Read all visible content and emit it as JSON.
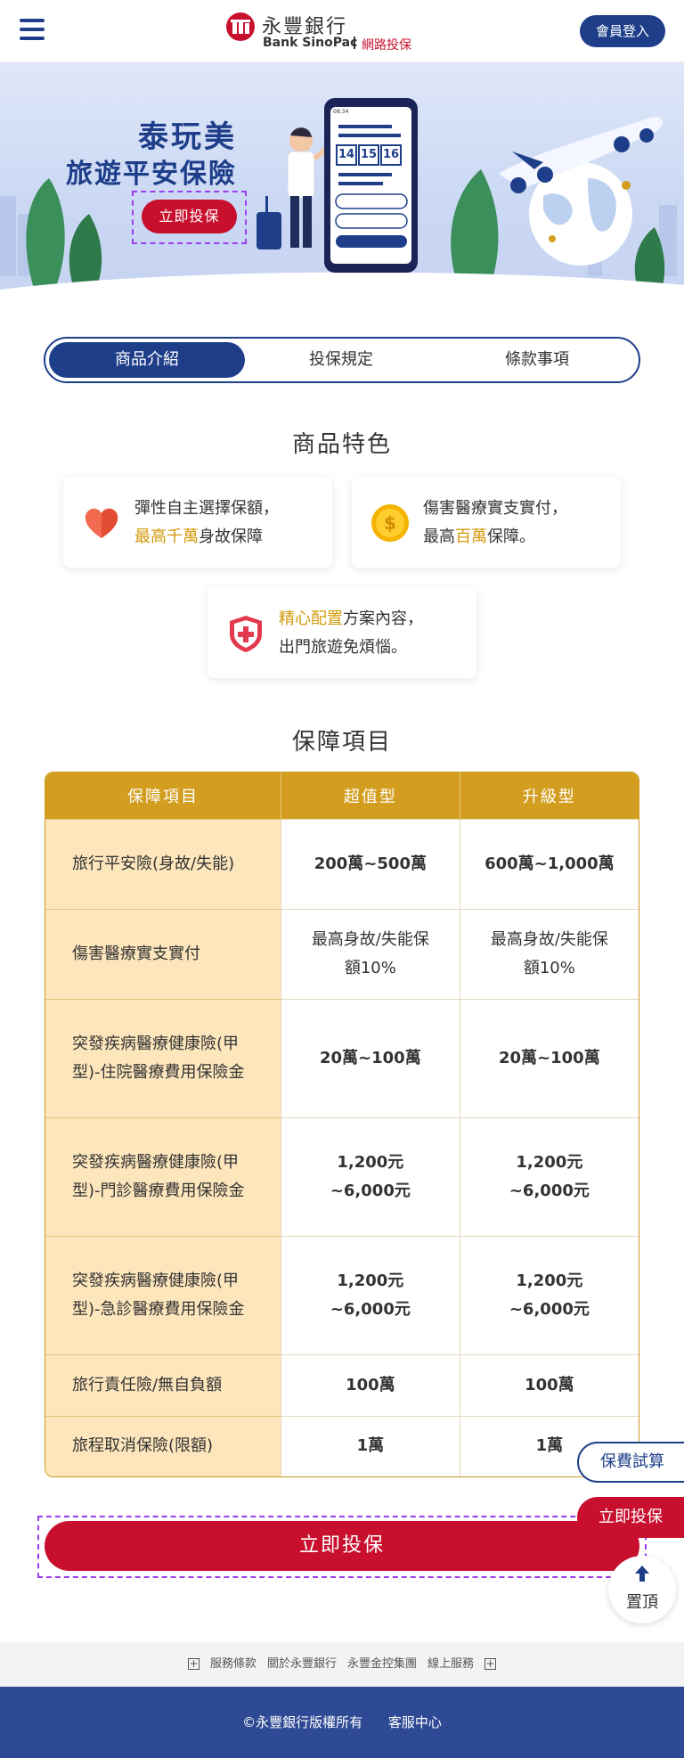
{
  "header": {
    "bank_name_cn": "永豐銀行",
    "bank_name_en": "Bank SinoPac",
    "sub_brand": "網路投保",
    "login_label": "會員登入"
  },
  "banner": {
    "title_line1": "泰玩美",
    "title_line2": "旅遊平安保險",
    "cta_label": "立即投保",
    "phone_dates": [
      "14",
      "15",
      "16"
    ],
    "phone_time": "08:34"
  },
  "tabs": [
    {
      "label": "商品介紹",
      "active": true
    },
    {
      "label": "投保規定",
      "active": false
    },
    {
      "label": "條款事項",
      "active": false
    }
  ],
  "features": {
    "title": "商品特色",
    "cards": [
      {
        "icon": "heart-icon",
        "line1": "彈性自主選擇保額，",
        "line2_highlight": "最高千萬",
        "line2_rest": "身故保障"
      },
      {
        "icon": "coin-icon",
        "line1": "傷害醫療實支實付，",
        "line2_pre": "最高",
        "line2_highlight": "百萬",
        "line2_rest": "保障。"
      },
      {
        "icon": "shield-plus-icon",
        "line1_highlight": "精心配置",
        "line1_rest": "方案內容，",
        "line2": "出門旅遊免煩惱。"
      }
    ]
  },
  "coverage": {
    "title": "保障項目",
    "headers": [
      "保障項目",
      "超值型",
      "升級型"
    ],
    "rows": [
      {
        "name": "旅行平安險(身故/失能)",
        "v1": "200萬~500萬",
        "v2": "600萬~1,000萬"
      },
      {
        "name": "傷害醫療實支實付",
        "v1": "最高身故/失能保額10%",
        "v2": "最高身故/失能保額10%"
      },
      {
        "name": "突發疾病醫療健康險(甲型)-住院醫療費用保險金",
        "v1": "20萬~100萬",
        "v2": "20萬~100萬"
      },
      {
        "name": "突發疾病醫療健康險(甲型)-門診醫療費用保險金",
        "v1": "1,200元~6,000元",
        "v2": "1,200元~6,000元"
      },
      {
        "name": "突發疾病醫療健康險(甲型)-急診醫療費用保險金",
        "v1": "1,200元~6,000元",
        "v2": "1,200元~6,000元"
      },
      {
        "name": "旅行責任險/無自負額",
        "v1": "100萬",
        "v2": "100萬"
      },
      {
        "name": "旅程取消保險(限額)",
        "v1": "1萬",
        "v2": "1萬"
      }
    ]
  },
  "main_cta": "立即投保",
  "floating": {
    "quote_label": "保費試算",
    "buy_label": "立即投保",
    "top_label": "置頂"
  },
  "footer": {
    "links": [
      "服務條款",
      "關於永豐銀行",
      "永豐金控集團",
      "線上服務"
    ],
    "copyright": "©永豐銀行版權所有",
    "service": "客服中心"
  }
}
